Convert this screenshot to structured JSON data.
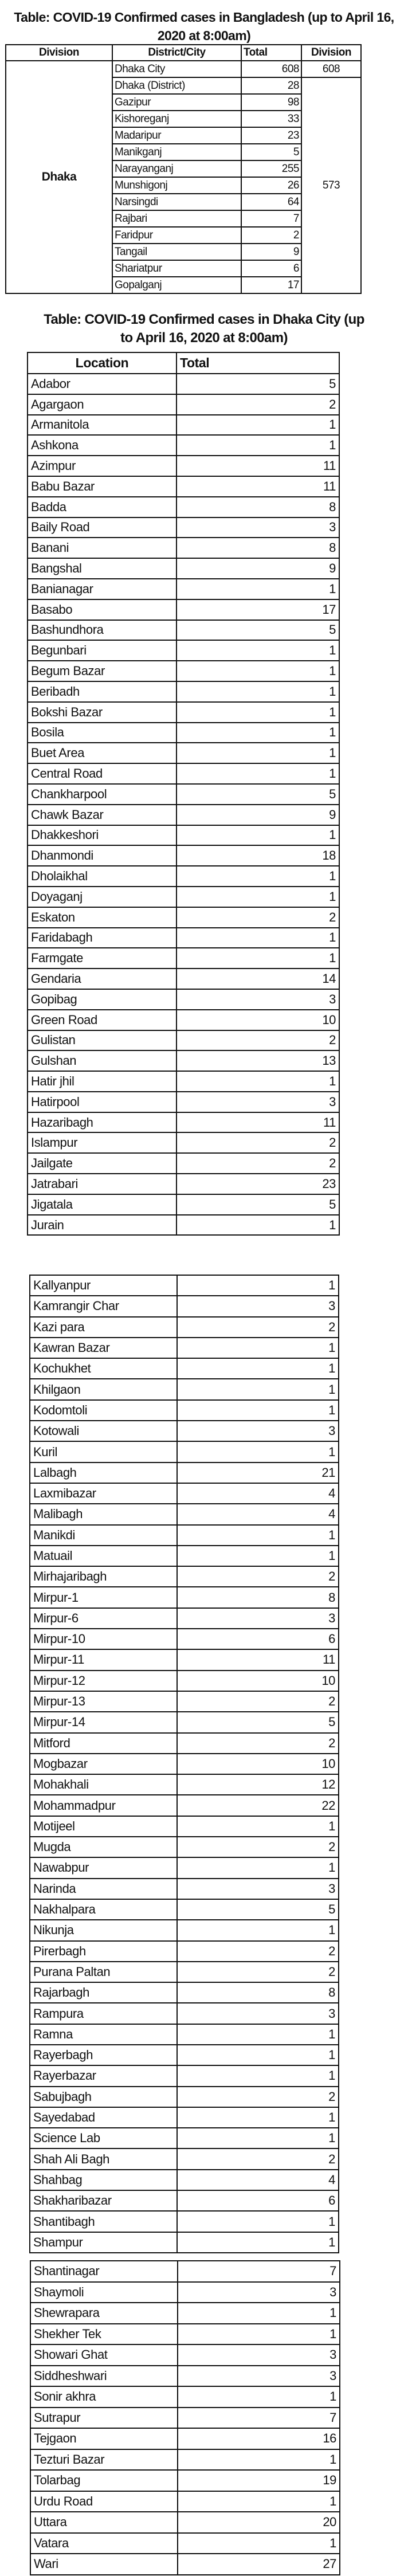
{
  "table1": {
    "title_line1": "Table: COVID-19 Confirmed cases in Bangladesh      (up to April 16,",
    "title_line2": "2020 at 8:00am)",
    "headers": [
      "Division",
      "District/City",
      "Total",
      "Division"
    ],
    "division": "Dhaka",
    "division_totals": [
      "608",
      "573"
    ],
    "rows": [
      {
        "name": "Dhaka City",
        "total": "608"
      },
      {
        "name": "Dhaka (District)",
        "total": "28"
      },
      {
        "name": "Gazipur",
        "total": "98"
      },
      {
        "name": "Kishoreganj",
        "total": "33"
      },
      {
        "name": "Madaripur",
        "total": "23"
      },
      {
        "name": "Manikganj",
        "total": "5"
      },
      {
        "name": "Narayanganj",
        "total": "255"
      },
      {
        "name": "Munshigonj",
        "total": "26"
      },
      {
        "name": "Narsingdi",
        "total": "64"
      },
      {
        "name": "Rajbari",
        "total": "7"
      },
      {
        "name": "Faridpur",
        "total": "2"
      },
      {
        "name": "Tangail",
        "total": "9"
      },
      {
        "name": "Shariatpur",
        "total": "6"
      },
      {
        "name": "Gopalganj",
        "total": "17"
      }
    ]
  },
  "table2": {
    "title_line1": "Table: COVID-19 Confirmed cases in Dhaka City (up",
    "title_line2": "to April 16, 2020 at 8:00am)",
    "headers": [
      "Location",
      "Total"
    ],
    "blocks": [
      [
        [
          "Adabor",
          "5"
        ],
        [
          "Agargaon",
          "2"
        ],
        [
          "Armanitola",
          "1"
        ],
        [
          "Ashkona",
          "1"
        ],
        [
          "Azimpur",
          "11"
        ],
        [
          "Babu Bazar",
          "11"
        ],
        [
          "Badda",
          "8"
        ],
        [
          "Baily Road",
          "3"
        ],
        [
          "Banani",
          "8"
        ],
        [
          "Bangshal",
          "9"
        ],
        [
          "Banianagar",
          "1"
        ],
        [
          "Basabo",
          "17"
        ],
        [
          "Bashundhora",
          "5"
        ],
        [
          "Begunbari",
          "1"
        ],
        [
          "Begum Bazar",
          "1"
        ],
        [
          "Beribadh",
          "1"
        ],
        [
          "Bokshi Bazar",
          "1"
        ],
        [
          "Bosila",
          "1"
        ],
        [
          "Buet Area",
          "1"
        ],
        [
          "Central Road",
          "1"
        ],
        [
          "Chankharpool",
          "5"
        ],
        [
          "Chawk Bazar",
          "9"
        ],
        [
          "Dhakkeshori",
          "1"
        ],
        [
          "Dhanmondi",
          "18"
        ],
        [
          "Dholaikhal",
          "1"
        ],
        [
          "Doyaganj",
          "1"
        ],
        [
          "Eskaton",
          "2"
        ],
        [
          "Faridabagh",
          "1"
        ],
        [
          "Farmgate",
          "1"
        ],
        [
          "Gendaria",
          "14"
        ],
        [
          "Gopibag",
          "3"
        ],
        [
          "Green Road",
          "10"
        ],
        [
          "Gulistan",
          "2"
        ],
        [
          "Gulshan",
          "13"
        ],
        [
          "Hatir jhil",
          "1"
        ],
        [
          "Hatirpool",
          "3"
        ],
        [
          "Hazaribagh",
          "11"
        ],
        [
          "Islampur",
          "2"
        ],
        [
          "Jailgate",
          "2"
        ],
        [
          "Jatrabari",
          "23"
        ],
        [
          "Jigatala",
          "5"
        ],
        [
          "Jurain",
          "1"
        ]
      ],
      [
        [
          "Kallyanpur",
          "1"
        ],
        [
          "Kamrangir Char",
          "3"
        ],
        [
          "Kazi para",
          "2"
        ],
        [
          "Kawran Bazar",
          "1"
        ],
        [
          "Kochukhet",
          "1"
        ],
        [
          "Khilgaon",
          "1"
        ],
        [
          "Kodomtoli",
          "1"
        ],
        [
          "Kotowali",
          "3"
        ],
        [
          "Kuril",
          "1"
        ],
        [
          "Lalbagh",
          "21"
        ],
        [
          "Laxmibazar",
          "4"
        ],
        [
          "Malibagh",
          "4"
        ],
        [
          "Manikdi",
          "1"
        ],
        [
          "Matuail",
          "1"
        ],
        [
          "Mirhajaribagh",
          "2"
        ],
        [
          "Mirpur-1",
          "8"
        ],
        [
          "Mirpur-6",
          "3"
        ],
        [
          "Mirpur-10",
          "6"
        ],
        [
          "Mirpur-11",
          "11"
        ],
        [
          "Mirpur-12",
          "10"
        ],
        [
          "Mirpur-13",
          "2"
        ],
        [
          "Mirpur-14",
          "5"
        ],
        [
          "Mitford",
          "2"
        ],
        [
          "Mogbazar",
          "10"
        ],
        [
          "Mohakhali",
          "12"
        ],
        [
          "Mohammadpur",
          "22"
        ],
        [
          "Motijeel",
          "1"
        ],
        [
          "Mugda",
          "2"
        ],
        [
          "Nawabpur",
          "1"
        ],
        [
          "Narinda",
          "3"
        ],
        [
          "Nakhalpara",
          "5"
        ],
        [
          "Nikunja",
          "1"
        ],
        [
          "Pirerbagh",
          "2"
        ],
        [
          "Purana Paltan",
          "2"
        ],
        [
          "Rajarbagh",
          "8"
        ],
        [
          "Rampura",
          "3"
        ],
        [
          "Ramna",
          "1"
        ],
        [
          "Rayerbagh",
          "1"
        ],
        [
          "Rayerbazar",
          "1"
        ],
        [
          "Sabujbagh",
          "2"
        ],
        [
          "Sayedabad",
          "1"
        ],
        [
          "Science Lab",
          "1"
        ],
        [
          "Shah Ali Bagh",
          "2"
        ],
        [
          "Shahbag",
          "4"
        ],
        [
          "Shakharibazar",
          "6"
        ],
        [
          "Shantibagh",
          "1"
        ],
        [
          "Shampur",
          "1"
        ]
      ],
      [
        [
          "Shantinagar",
          "7"
        ],
        [
          "Shaymoli",
          "3"
        ],
        [
          "Shewrapara",
          "1"
        ],
        [
          "Shekher Tek",
          "1"
        ],
        [
          "Showari Ghat",
          "3"
        ],
        [
          "Siddheshwari",
          "3"
        ],
        [
          "Sonir akhra",
          "1"
        ],
        [
          "Sutrapur",
          "7"
        ],
        [
          "Tejgaon",
          "16"
        ],
        [
          "Tezturi Bazar",
          "1"
        ],
        [
          "Tolarbag",
          "19"
        ],
        [
          "Urdu Road",
          "1"
        ],
        [
          "Uttara",
          "20"
        ],
        [
          "Vatara",
          "1"
        ],
        [
          "Wari",
          "27"
        ]
      ]
    ]
  }
}
